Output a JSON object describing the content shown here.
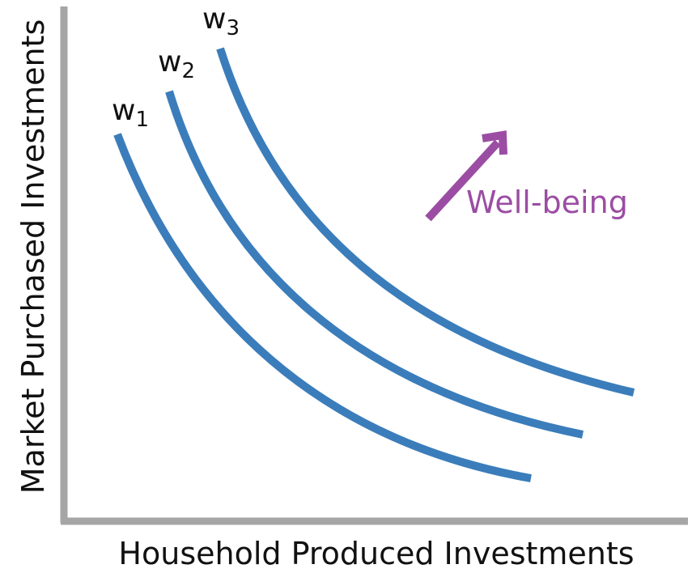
{
  "x_axis": {
    "label": "Household Produced Investments"
  },
  "y_axis": {
    "label": "Market Purchased Investments"
  },
  "curves": [
    {
      "base": "w",
      "sub": "1"
    },
    {
      "base": "w",
      "sub": "2"
    },
    {
      "base": "w",
      "sub": "3"
    }
  ],
  "arrow": {
    "label": "Well-being"
  },
  "colors": {
    "curve": "#3b7dbb",
    "arrow": "#9b4da3",
    "axis": "#a6a6a6",
    "text": "#111111"
  }
}
